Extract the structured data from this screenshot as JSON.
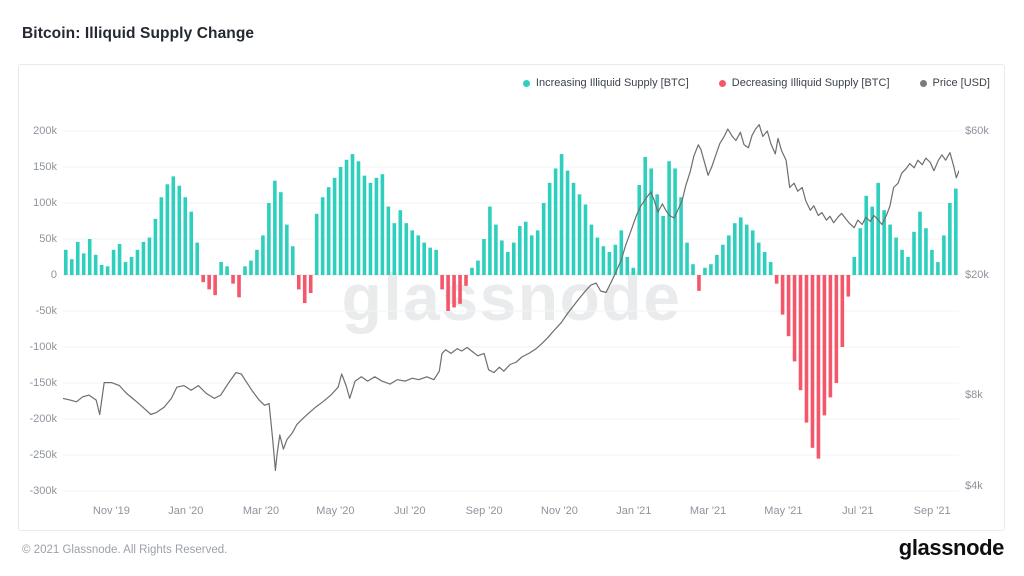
{
  "page": {
    "title": "Bitcoin: Illiquid Supply Change",
    "watermark": "glassnode",
    "footer_copyright": "© 2021 Glassnode. All Rights Reserved.",
    "brand_logo_text": "glassnode"
  },
  "legend": {
    "position": "top-right",
    "items": [
      {
        "label": "Increasing Illiquid Supply [BTC]",
        "color": "#2ed0bd"
      },
      {
        "label": "Decreasing Illiquid Supply [BTC]",
        "color": "#f4566a"
      },
      {
        "label": "Price [USD]",
        "color": "#7a7a7a"
      }
    ]
  },
  "axes": {
    "left_ticks": [
      {
        "label": "200k",
        "value": 200
      },
      {
        "label": "150k",
        "value": 150
      },
      {
        "label": "100k",
        "value": 100
      },
      {
        "label": "50k",
        "value": 50
      },
      {
        "label": "0",
        "value": 0
      },
      {
        "label": "-50k",
        "value": -50
      },
      {
        "label": "-100k",
        "value": -100
      },
      {
        "label": "-150k",
        "value": -150
      },
      {
        "label": "-200k",
        "value": -200
      },
      {
        "label": "-250k",
        "value": -250
      },
      {
        "label": "-300k",
        "value": -300
      }
    ],
    "right_ticks": [
      {
        "label": "$60k",
        "value": 60
      },
      {
        "label": "$20k",
        "value": 20
      },
      {
        "label": "$8k",
        "value": 8
      },
      {
        "label": "$4k",
        "value": 4
      }
    ],
    "x_ticks": [
      {
        "label": "Nov '19",
        "pct": 5.4
      },
      {
        "label": "Jan '20",
        "pct": 13.7
      },
      {
        "label": "Mar '20",
        "pct": 22.1
      },
      {
        "label": "May '20",
        "pct": 30.4
      },
      {
        "label": "Jul '20",
        "pct": 38.7
      },
      {
        "label": "Sep '20",
        "pct": 47.0
      },
      {
        "label": "Nov '20",
        "pct": 55.4
      },
      {
        "label": "Jan '21",
        "pct": 63.7
      },
      {
        "label": "Mar '21",
        "pct": 72.0
      },
      {
        "label": "May '21",
        "pct": 80.4
      },
      {
        "label": "Jul '21",
        "pct": 88.7
      },
      {
        "label": "Sep '21",
        "pct": 97.0
      }
    ]
  },
  "chart_data": {
    "type": "bar",
    "subtype": "bar+line-dual-axis",
    "title": "Bitcoin: Illiquid Supply Change",
    "grid": "horizontal",
    "legend_position": "top-right",
    "watermark": "glassnode",
    "x_axis": {
      "start": "Oct 2019",
      "end": "Oct 2021",
      "tick_interval": "2 months"
    },
    "left_axis": {
      "label": "Illiquid Supply Change",
      "units": "BTC",
      "scale": "linear",
      "range_kbtc": [
        -305,
        230
      ],
      "tick_values_kbtc": [
        200,
        150,
        100,
        50,
        0,
        -50,
        -100,
        -150,
        -200,
        -250,
        -300
      ]
    },
    "right_axis": {
      "label": "Price",
      "units": "USD",
      "scale": "log",
      "tick_values_usd_k": [
        60,
        20,
        8,
        4
      ]
    },
    "series": [
      {
        "name": "Increasing Illiquid Supply [BTC]",
        "type": "bar",
        "color": "#2ed0bd",
        "sign": "positive"
      },
      {
        "name": "Decreasing Illiquid Supply [BTC]",
        "type": "bar",
        "color": "#f4566a",
        "sign": "negative"
      },
      {
        "name": "Price [USD]",
        "type": "line",
        "color": "#6e6e6e",
        "scale": "log"
      }
    ],
    "bars_units": "thousand BTC",
    "bars_kbtc": [
      35,
      22,
      46,
      30,
      50,
      28,
      14,
      12,
      35,
      43,
      18,
      25,
      35,
      46,
      52,
      78,
      108,
      126,
      137,
      124,
      108,
      88,
      45,
      -10,
      -20,
      -28,
      18,
      12,
      -12,
      -31,
      12,
      20,
      35,
      55,
      100,
      131,
      115,
      70,
      40,
      -20,
      -39,
      -25,
      85,
      108,
      122,
      135,
      150,
      160,
      168,
      158,
      138,
      128,
      135,
      140,
      95,
      72,
      90,
      72,
      62,
      55,
      45,
      38,
      35,
      -20,
      -50,
      -45,
      -40,
      -15,
      10,
      20,
      50,
      95,
      70,
      48,
      32,
      45,
      68,
      74,
      55,
      62,
      100,
      128,
      148,
      168,
      145,
      128,
      112,
      98,
      70,
      52,
      40,
      32,
      42,
      62,
      25,
      10,
      125,
      164,
      148,
      112,
      82,
      158,
      148,
      108,
      45,
      15,
      -22,
      10,
      15,
      28,
      42,
      55,
      72,
      80,
      70,
      62,
      45,
      32,
      18,
      -12,
      -55,
      -85,
      -120,
      -160,
      -205,
      -240,
      -255,
      -195,
      -170,
      -150,
      -100,
      -30,
      25,
      65,
      110,
      95,
      128,
      90,
      70,
      52,
      35,
      25,
      60,
      88,
      65,
      35,
      18,
      55,
      100,
      120
    ],
    "price_units": "thousand USD, position as % across x-axis",
    "price_points": [
      [
        0,
        7.8
      ],
      [
        0.8,
        7.7
      ],
      [
        1.5,
        7.6
      ],
      [
        2.2,
        7.9
      ],
      [
        2.9,
        8.0
      ],
      [
        3.7,
        7.7
      ],
      [
        4.1,
        6.9
      ],
      [
        4.6,
        8.8
      ],
      [
        5.4,
        8.8
      ],
      [
        6.3,
        8.6
      ],
      [
        7.1,
        8.1
      ],
      [
        8.0,
        7.7
      ],
      [
        8.9,
        7.3
      ],
      [
        9.8,
        6.9
      ],
      [
        10.4,
        7.0
      ],
      [
        11.3,
        7.3
      ],
      [
        12.1,
        7.8
      ],
      [
        12.7,
        8.5
      ],
      [
        13.5,
        8.6
      ],
      [
        14.3,
        8.3
      ],
      [
        15.1,
        8.6
      ],
      [
        16.0,
        8.1
      ],
      [
        16.9,
        7.8
      ],
      [
        17.6,
        8.0
      ],
      [
        18.5,
        8.8
      ],
      [
        19.3,
        9.5
      ],
      [
        19.9,
        9.4
      ],
      [
        20.4,
        8.9
      ],
      [
        21.2,
        8.2
      ],
      [
        21.9,
        7.7
      ],
      [
        22.5,
        7.4
      ],
      [
        23.0,
        7.5
      ],
      [
        23.4,
        5.7
      ],
      [
        23.7,
        4.5
      ],
      [
        23.9,
        5.1
      ],
      [
        24.2,
        5.9
      ],
      [
        24.6,
        5.3
      ],
      [
        25.0,
        5.7
      ],
      [
        25.6,
        6.0
      ],
      [
        26.1,
        6.4
      ],
      [
        26.8,
        6.7
      ],
      [
        27.5,
        7.0
      ],
      [
        28.2,
        7.3
      ],
      [
        29.0,
        7.6
      ],
      [
        29.9,
        8.0
      ],
      [
        30.7,
        8.5
      ],
      [
        31.1,
        9.4
      ],
      [
        31.6,
        8.6
      ],
      [
        32.0,
        7.8
      ],
      [
        32.6,
        8.9
      ],
      [
        33.3,
        9.2
      ],
      [
        34.0,
        8.9
      ],
      [
        34.8,
        9.2
      ],
      [
        35.6,
        8.9
      ],
      [
        36.5,
        8.7
      ],
      [
        37.3,
        9.0
      ],
      [
        38.2,
        8.9
      ],
      [
        39.0,
        9.1
      ],
      [
        39.7,
        9.0
      ],
      [
        40.6,
        9.2
      ],
      [
        41.4,
        9.0
      ],
      [
        42.0,
        9.6
      ],
      [
        42.3,
        11.0
      ],
      [
        42.7,
        11.3
      ],
      [
        43.3,
        11.0
      ],
      [
        44.0,
        11.4
      ],
      [
        44.5,
        11.2
      ],
      [
        45.1,
        11.5
      ],
      [
        45.6,
        11.2
      ],
      [
        46.3,
        10.8
      ],
      [
        47.0,
        11.0
      ],
      [
        47.5,
        9.7
      ],
      [
        48.1,
        9.5
      ],
      [
        48.7,
        9.9
      ],
      [
        49.2,
        9.6
      ],
      [
        49.9,
        10.1
      ],
      [
        50.6,
        10.3
      ],
      [
        51.2,
        10.7
      ],
      [
        52.0,
        11.0
      ],
      [
        52.8,
        11.4
      ],
      [
        53.5,
        11.9
      ],
      [
        54.1,
        12.4
      ],
      [
        54.8,
        13.1
      ],
      [
        55.6,
        13.9
      ],
      [
        56.3,
        14.9
      ],
      [
        56.9,
        15.7
      ],
      [
        57.6,
        16.7
      ],
      [
        58.3,
        17.7
      ],
      [
        58.9,
        18.5
      ],
      [
        59.5,
        18.8
      ],
      [
        60.0,
        17.7
      ],
      [
        60.6,
        17.5
      ],
      [
        61.2,
        19.0
      ],
      [
        61.7,
        20.4
      ],
      [
        62.3,
        22.4
      ],
      [
        62.8,
        25.1
      ],
      [
        63.4,
        28.1
      ],
      [
        64.0,
        31.5
      ],
      [
        64.5,
        33.9
      ],
      [
        65.1,
        36.0
      ],
      [
        65.6,
        37.7
      ],
      [
        66.0,
        35.2
      ],
      [
        66.4,
        32.3
      ],
      [
        66.9,
        34.4
      ],
      [
        67.3,
        32.7
      ],
      [
        67.7,
        31.5
      ],
      [
        68.2,
        30.9
      ],
      [
        68.6,
        32.8
      ],
      [
        69.1,
        35.2
      ],
      [
        69.5,
        39.5
      ],
      [
        70.0,
        44.0
      ],
      [
        70.4,
        49.5
      ],
      [
        70.9,
        54.0
      ],
      [
        71.2,
        52.0
      ],
      [
        71.5,
        48.4
      ],
      [
        72.0,
        42.8
      ],
      [
        72.4,
        45.6
      ],
      [
        72.9,
        50.4
      ],
      [
        73.3,
        54.5
      ],
      [
        73.8,
        57.6
      ],
      [
        74.2,
        60.9
      ],
      [
        74.7,
        57.6
      ],
      [
        75.1,
        55.8
      ],
      [
        75.6,
        59.4
      ],
      [
        76.0,
        54.1
      ],
      [
        76.5,
        52.8
      ],
      [
        76.9,
        58.0
      ],
      [
        77.3,
        60.9
      ],
      [
        77.7,
        63.0
      ],
      [
        78.1,
        57.6
      ],
      [
        78.6,
        60.0
      ],
      [
        79.0,
        54.5
      ],
      [
        79.5,
        50.4
      ],
      [
        79.8,
        56.7
      ],
      [
        80.2,
        51.6
      ],
      [
        80.7,
        48.0
      ],
      [
        81.1,
        39.0
      ],
      [
        81.6,
        40.3
      ],
      [
        82.0,
        37.9
      ],
      [
        82.5,
        39.0
      ],
      [
        82.9,
        35.2
      ],
      [
        83.4,
        32.8
      ],
      [
        83.8,
        33.9
      ],
      [
        84.3,
        31.5
      ],
      [
        84.7,
        32.2
      ],
      [
        85.2,
        30.4
      ],
      [
        85.6,
        31.3
      ],
      [
        86.0,
        29.8
      ],
      [
        86.5,
        31.1
      ],
      [
        86.9,
        32.0
      ],
      [
        87.4,
        30.6
      ],
      [
        87.8,
        29.6
      ],
      [
        88.3,
        28.7
      ],
      [
        88.7,
        30.4
      ],
      [
        89.2,
        29.4
      ],
      [
        89.6,
        31.1
      ],
      [
        90.1,
        30.1
      ],
      [
        90.5,
        31.5
      ],
      [
        91.0,
        30.4
      ],
      [
        91.4,
        29.4
      ],
      [
        91.9,
        31.5
      ],
      [
        92.3,
        33.9
      ],
      [
        92.7,
        39.0
      ],
      [
        93.2,
        40.3
      ],
      [
        93.6,
        43.5
      ],
      [
        94.1,
        45.0
      ],
      [
        94.5,
        46.8
      ],
      [
        95.0,
        45.3
      ],
      [
        95.4,
        48.0
      ],
      [
        95.9,
        46.4
      ],
      [
        96.3,
        48.8
      ],
      [
        96.8,
        47.2
      ],
      [
        97.2,
        44.3
      ],
      [
        97.7,
        48.0
      ],
      [
        98.1,
        50.0
      ],
      [
        98.5,
        48.0
      ],
      [
        99.0,
        50.9
      ],
      [
        99.4,
        46.0
      ],
      [
        99.7,
        42.0
      ],
      [
        100,
        44.3
      ]
    ]
  }
}
